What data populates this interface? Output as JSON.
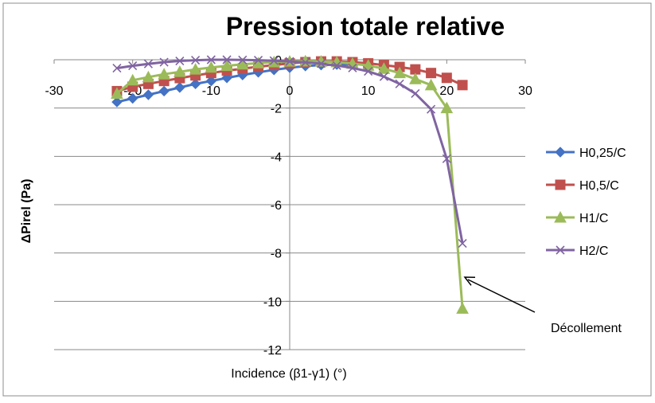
{
  "chart_data": {
    "type": "line",
    "title": "Pression totale relative",
    "xlabel": "Incidence (β1-γ1) (°)",
    "ylabel": "ΔPirel (Pa)",
    "xlim": [
      -30,
      30
    ],
    "ylim": [
      -12,
      0
    ],
    "xticks": [
      -30,
      -20,
      -10,
      0,
      10,
      20,
      30
    ],
    "yticks": [
      0,
      -2,
      -4,
      -6,
      -8,
      -10,
      -12
    ],
    "grid": "horizontal",
    "legend_position": "right",
    "series": [
      {
        "name": "H0,25/C",
        "color": "#4472c4",
        "marker": "diamond",
        "x": [
          -22,
          -20,
          -18,
          -16,
          -14,
          -12,
          -10,
          -8,
          -6,
          -4,
          -2,
          0,
          2,
          4,
          6,
          8
        ],
        "y": [
          -1.75,
          -1.6,
          -1.45,
          -1.3,
          -1.15,
          -1.0,
          -0.88,
          -0.75,
          -0.63,
          -0.52,
          -0.42,
          -0.33,
          -0.26,
          -0.22,
          -0.2,
          -0.2
        ]
      },
      {
        "name": "H0,5/C",
        "color": "#c0504d",
        "marker": "square",
        "x": [
          -22,
          -20,
          -18,
          -16,
          -14,
          -12,
          -10,
          -8,
          -6,
          -4,
          -2,
          0,
          2,
          4,
          6,
          8,
          10,
          12,
          14,
          16,
          18,
          20,
          22
        ],
        "y": [
          -1.3,
          -1.12,
          -1.0,
          -0.88,
          -0.76,
          -0.65,
          -0.55,
          -0.45,
          -0.37,
          -0.29,
          -0.22,
          -0.15,
          -0.1,
          -0.07,
          -0.07,
          -0.1,
          -0.15,
          -0.22,
          -0.3,
          -0.4,
          -0.55,
          -0.75,
          -1.05
        ]
      },
      {
        "name": "H1/C",
        "color": "#9bbb59",
        "marker": "triangle",
        "x": [
          -22,
          -20,
          -18,
          -16,
          -14,
          -12,
          -10,
          -8,
          -6,
          -4,
          -2,
          0,
          2,
          4,
          6,
          8,
          10,
          12,
          14,
          16,
          18,
          20,
          22
        ],
        "y": [
          -1.4,
          -0.85,
          -0.72,
          -0.6,
          -0.5,
          -0.4,
          -0.32,
          -0.25,
          -0.19,
          -0.14,
          -0.1,
          -0.07,
          -0.06,
          -0.07,
          -0.1,
          -0.16,
          -0.24,
          -0.37,
          -0.55,
          -0.8,
          -1.05,
          -2.0,
          -10.3
        ]
      },
      {
        "name": "H2/C",
        "color": "#8064a2",
        "marker": "x",
        "x": [
          -22,
          -20,
          -18,
          -16,
          -14,
          -12,
          -10,
          -8,
          -6,
          -4,
          -2,
          0,
          2,
          4,
          6,
          8,
          10,
          12,
          14,
          16,
          18,
          20,
          22
        ],
        "y": [
          -0.35,
          -0.25,
          -0.17,
          -0.1,
          -0.05,
          -0.02,
          0.0,
          0.0,
          -0.01,
          -0.02,
          -0.04,
          -0.07,
          -0.11,
          -0.16,
          -0.24,
          -0.34,
          -0.48,
          -0.7,
          -1.0,
          -1.4,
          -2.05,
          -4.1,
          -7.6
        ]
      }
    ],
    "annotations": [
      {
        "text": "Décollement",
        "x_data": 22.3,
        "y_data": -9.0
      }
    ]
  }
}
